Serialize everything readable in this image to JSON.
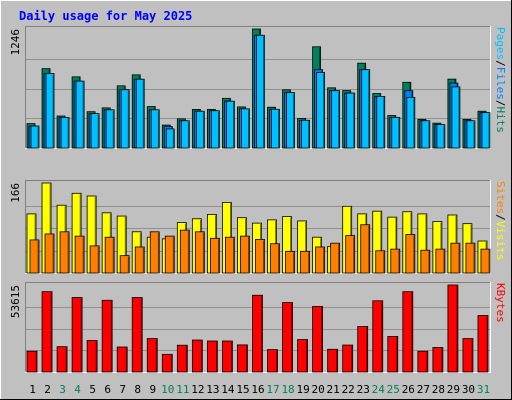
{
  "title": "Daily usage for May 2025",
  "colors": {
    "hits": "#00805c",
    "files": "#0080ff",
    "pages": "#00c0ff",
    "visits": "#ffff00",
    "sites": "#ff8000",
    "kbytes": "#ff0000",
    "title": "#0000ff",
    "weekend_label": "#00805c",
    "weekday_label": "#000000"
  },
  "chart_data": [
    {
      "type": "bar",
      "panel": "hits-files-pages",
      "ymax_label": "1246",
      "legend": [
        {
          "text": "Hits",
          "color": "#00805c"
        },
        {
          "text": "Files",
          "color": "#0080ff"
        },
        {
          "text": "Pages",
          "color": "#00c0ff"
        }
      ],
      "ylim": [
        0,
        1246
      ],
      "categories": [
        "1",
        "2",
        "3",
        "4",
        "5",
        "6",
        "7",
        "8",
        "9",
        "10",
        "11",
        "12",
        "13",
        "14",
        "15",
        "16",
        "17",
        "18",
        "19",
        "20",
        "21",
        "22",
        "23",
        "24",
        "25",
        "26",
        "27",
        "28",
        "29",
        "30",
        "31"
      ],
      "series": [
        {
          "name": "Hits",
          "values": [
            255,
            831,
            335,
            745,
            380,
            420,
            651,
            766,
            434,
            240,
            305,
            404,
            404,
            520,
            430,
            1246,
            427,
            609,
            310,
            1060,
            630,
            601,
            888,
            570,
            340,
            688,
            300,
            260,
            721,
            300,
            385
          ]
        },
        {
          "name": "Files",
          "values": [
            230,
            780,
            320,
            700,
            360,
            400,
            610,
            720,
            400,
            225,
            285,
            385,
            390,
            490,
            410,
            1180,
            405,
            580,
            290,
            820,
            600,
            575,
            820,
            540,
            320,
            600,
            285,
            245,
            680,
            285,
            370
          ]
        },
        {
          "name": "Pages",
          "values": [
            230,
            780,
            320,
            700,
            360,
            400,
            610,
            720,
            400,
            200,
            285,
            385,
            390,
            490,
            410,
            1180,
            405,
            580,
            290,
            790,
            600,
            575,
            820,
            540,
            320,
            530,
            285,
            245,
            640,
            285,
            370
          ]
        }
      ]
    },
    {
      "type": "bar",
      "panel": "visits-sites",
      "ymax_label": "166",
      "legend": [
        {
          "text": "Visits",
          "color": "#ffff00"
        },
        {
          "text": "Sites",
          "color": "#ff8000"
        }
      ],
      "ylim": [
        0,
        166
      ],
      "series": [
        {
          "name": "Visits",
          "values": [
            109,
            166,
            125,
            147,
            142,
            111,
            105,
            76,
            66,
            63,
            93,
            100,
            108,
            130,
            102,
            92,
            98,
            104,
            96,
            66,
            49,
            123,
            109,
            114,
            103,
            113,
            109,
            95,
            107,
            91,
            59
          ]
        },
        {
          "name": "Sites",
          "values": [
            61,
            72,
            76,
            68,
            50,
            66,
            32,
            48,
            76,
            68,
            79,
            76,
            64,
            66,
            68,
            62,
            54,
            40,
            40,
            48,
            55,
            69,
            89,
            41,
            44,
            71,
            42,
            44,
            55,
            55,
            44
          ]
        }
      ]
    },
    {
      "type": "bar",
      "panel": "kbytes",
      "ymax_label": "53615",
      "legend": [
        {
          "text": "KBytes",
          "color": "#ff0000"
        }
      ],
      "ylim": [
        0,
        53615
      ],
      "series": [
        {
          "name": "KBytes",
          "values": [
            12800,
            49500,
            15600,
            45900,
            19400,
            44200,
            15400,
            45900,
            20600,
            10900,
            16500,
            19700,
            19100,
            19100,
            16700,
            47300,
            13800,
            42800,
            20000,
            40400,
            14000,
            16600,
            28100,
            43900,
            21900,
            49500,
            12800,
            15100,
            53615,
            20600,
            34800
          ]
        }
      ]
    }
  ]
}
